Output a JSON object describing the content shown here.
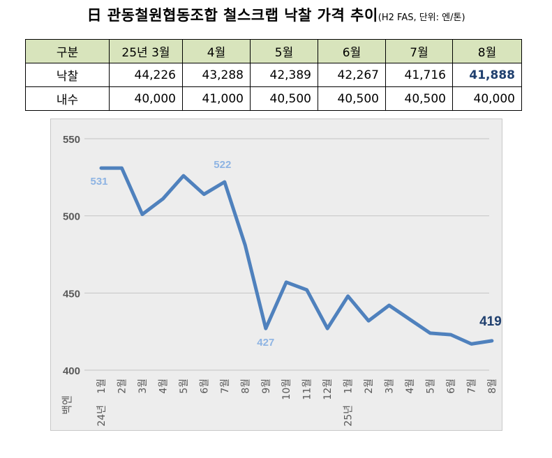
{
  "title": {
    "main": "日 관동철원협동조합 철스크랩 낙찰 가격 추이",
    "sub": "(H2 FAS, 단위: 엔/톤)"
  },
  "table": {
    "header": [
      "구분",
      "25년 3월",
      "4월",
      "5월",
      "6월",
      "7월",
      "8월"
    ],
    "rows": [
      {
        "label": "낙찰",
        "values": [
          "44,226",
          "43,288",
          "42,389",
          "42,267",
          "41,716",
          "41,888"
        ]
      },
      {
        "label": "내수",
        "values": [
          "40,000",
          "41,000",
          "40,500",
          "40,500",
          "40,500",
          "40,000"
        ]
      }
    ]
  },
  "chart_data": {
    "type": "line",
    "ylabel": "백엔",
    "ylim": [
      400,
      550
    ],
    "yticks": [
      400,
      450,
      500,
      550
    ],
    "grid": true,
    "categories": [
      "1월",
      "2월",
      "3월",
      "4월",
      "5월",
      "6월",
      "7월",
      "8월",
      "9월",
      "10월",
      "11월",
      "12월",
      "1월",
      "2월",
      "3월",
      "4월",
      "5월",
      "6월",
      "7월",
      "8월"
    ],
    "year_labels": [
      {
        "at": 0,
        "text": "24년"
      },
      {
        "at": 12,
        "text": "25년"
      }
    ],
    "series": [
      {
        "color": "#4f81bd",
        "values": [
          531,
          531,
          501,
          511,
          526,
          514,
          522,
          481,
          427,
          457,
          452,
          427,
          448,
          432,
          442,
          433,
          424,
          423,
          417,
          419
        ]
      }
    ],
    "annotations": [
      {
        "index": 0,
        "text": "531",
        "color": "#8eb4e3"
      },
      {
        "index": 6,
        "text": "522",
        "color": "#8eb4e3"
      },
      {
        "index": 8,
        "text": "427",
        "color": "#8eb4e3"
      },
      {
        "index": 19,
        "text": "419",
        "color": "#1f3f6e"
      }
    ]
  }
}
